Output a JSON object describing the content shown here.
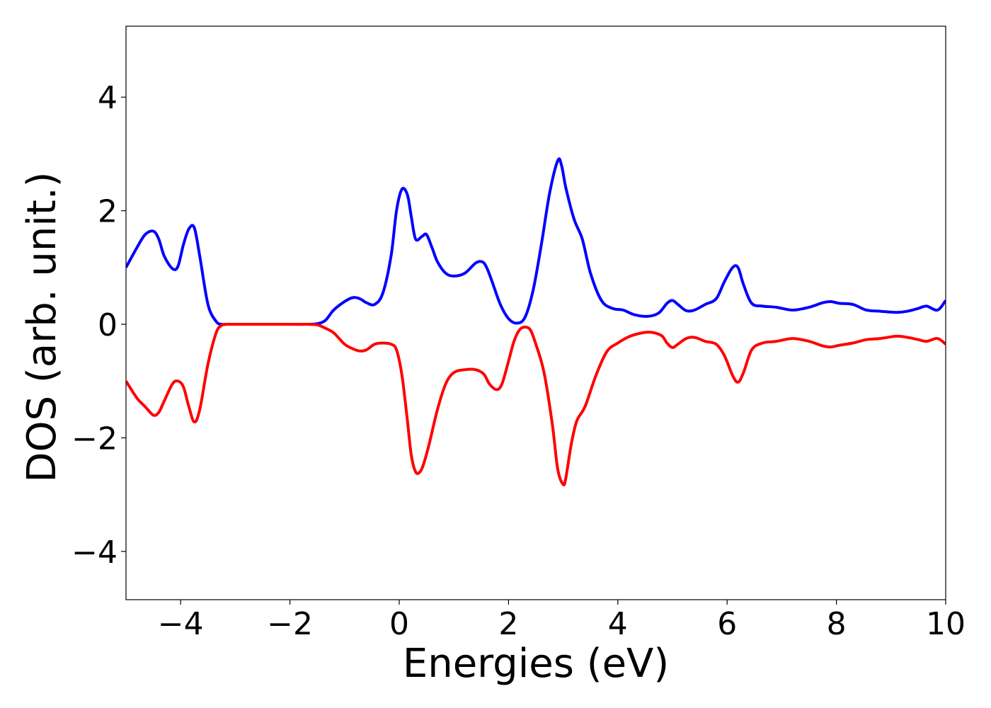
{
  "chart_data": {
    "type": "line",
    "title": "",
    "xlabel": "Energies (eV)",
    "ylabel": "DOS (arb. unit.)",
    "xlim": [
      -5,
      10
    ],
    "ylim": [
      -4.85,
      5.25
    ],
    "xticks": [
      -4,
      -2,
      0,
      2,
      4,
      6,
      8,
      10
    ],
    "xtick_labels": [
      "−4",
      "−2",
      "0",
      "2",
      "4",
      "6",
      "8",
      "10"
    ],
    "yticks": [
      -4,
      -2,
      0,
      2,
      4
    ],
    "ytick_labels": [
      "−4",
      "−2",
      "0",
      "2",
      "4"
    ],
    "grid": false,
    "legend": "none",
    "series": [
      {
        "color": "#0000ff",
        "x": [
          -5.0,
          -4.8,
          -4.65,
          -4.5,
          -4.4,
          -4.3,
          -4.15,
          -4.05,
          -3.95,
          -3.85,
          -3.75,
          -3.65,
          -3.5,
          -3.35,
          -3.25,
          -3.15,
          -3.0,
          -2.5,
          -2.0,
          -1.7,
          -1.5,
          -1.35,
          -1.2,
          -1.0,
          -0.85,
          -0.72,
          -0.6,
          -0.45,
          -0.3,
          -0.15,
          -0.05,
          0.05,
          0.15,
          0.22,
          0.3,
          0.42,
          0.5,
          0.6,
          0.7,
          0.85,
          1.0,
          1.2,
          1.4,
          1.52,
          1.6,
          1.7,
          1.85,
          2.0,
          2.15,
          2.3,
          2.45,
          2.6,
          2.75,
          2.9,
          2.97,
          3.05,
          3.2,
          3.35,
          3.5,
          3.7,
          3.9,
          4.1,
          4.3,
          4.55,
          4.75,
          4.9,
          5.0,
          5.1,
          5.25,
          5.4,
          5.6,
          5.8,
          5.95,
          6.1,
          6.2,
          6.3,
          6.45,
          6.65,
          6.9,
          7.2,
          7.5,
          7.75,
          7.9,
          8.05,
          8.3,
          8.55,
          8.8,
          9.1,
          9.3,
          9.5,
          9.65,
          9.85,
          10.0
        ],
        "y": [
          1.0,
          1.35,
          1.58,
          1.64,
          1.5,
          1.2,
          0.98,
          1.02,
          1.4,
          1.68,
          1.7,
          1.2,
          0.35,
          0.05,
          0.0,
          0.0,
          0.0,
          0.0,
          0.0,
          0.0,
          0.01,
          0.07,
          0.25,
          0.4,
          0.47,
          0.45,
          0.38,
          0.35,
          0.55,
          1.2,
          2.0,
          2.38,
          2.28,
          1.9,
          1.5,
          1.55,
          1.58,
          1.35,
          1.1,
          0.9,
          0.85,
          0.9,
          1.08,
          1.1,
          1.0,
          0.75,
          0.35,
          0.1,
          0.02,
          0.12,
          0.6,
          1.4,
          2.3,
          2.88,
          2.8,
          2.4,
          1.85,
          1.5,
          0.9,
          0.42,
          0.28,
          0.25,
          0.17,
          0.14,
          0.2,
          0.37,
          0.42,
          0.35,
          0.24,
          0.25,
          0.35,
          0.45,
          0.75,
          1.0,
          1.0,
          0.7,
          0.37,
          0.32,
          0.3,
          0.25,
          0.3,
          0.38,
          0.4,
          0.37,
          0.35,
          0.25,
          0.23,
          0.21,
          0.23,
          0.28,
          0.32,
          0.25,
          0.42
        ]
      },
      {
        "color": "#ff0000",
        "x": [
          -5.0,
          -4.8,
          -4.65,
          -4.5,
          -4.4,
          -4.3,
          -4.15,
          -4.05,
          -3.95,
          -3.85,
          -3.75,
          -3.65,
          -3.5,
          -3.35,
          -3.25,
          -3.15,
          -3.0,
          -2.5,
          -2.0,
          -1.7,
          -1.5,
          -1.35,
          -1.2,
          -1.0,
          -0.85,
          -0.72,
          -0.6,
          -0.45,
          -0.3,
          -0.15,
          -0.05,
          0.05,
          0.15,
          0.22,
          0.3,
          0.38,
          0.45,
          0.55,
          0.7,
          0.85,
          1.0,
          1.2,
          1.4,
          1.55,
          1.65,
          1.78,
          1.88,
          2.0,
          2.1,
          2.2,
          2.3,
          2.4,
          2.5,
          2.65,
          2.8,
          2.9,
          3.0,
          3.05,
          3.15,
          3.25,
          3.4,
          3.6,
          3.8,
          4.0,
          4.2,
          4.4,
          4.6,
          4.8,
          4.9,
          5.0,
          5.1,
          5.25,
          5.4,
          5.6,
          5.8,
          5.95,
          6.1,
          6.2,
          6.3,
          6.45,
          6.65,
          6.9,
          7.2,
          7.5,
          7.75,
          7.9,
          8.05,
          8.3,
          8.55,
          8.8,
          9.1,
          9.3,
          9.5,
          9.65,
          9.85,
          10.0
        ],
        "y": [
          -1.0,
          -1.3,
          -1.45,
          -1.6,
          -1.55,
          -1.35,
          -1.05,
          -1.0,
          -1.1,
          -1.45,
          -1.72,
          -1.5,
          -0.7,
          -0.15,
          -0.02,
          0.0,
          0.0,
          0.0,
          0.0,
          0.0,
          -0.01,
          -0.07,
          -0.15,
          -0.35,
          -0.43,
          -0.47,
          -0.45,
          -0.35,
          -0.33,
          -0.35,
          -0.45,
          -0.9,
          -1.7,
          -2.3,
          -2.6,
          -2.6,
          -2.45,
          -2.1,
          -1.5,
          -1.05,
          -0.85,
          -0.8,
          -0.8,
          -0.88,
          -1.05,
          -1.15,
          -1.05,
          -0.65,
          -0.3,
          -0.1,
          -0.05,
          -0.1,
          -0.35,
          -0.85,
          -1.75,
          -2.55,
          -2.82,
          -2.7,
          -2.1,
          -1.7,
          -1.45,
          -0.9,
          -0.48,
          -0.33,
          -0.22,
          -0.16,
          -0.14,
          -0.2,
          -0.33,
          -0.41,
          -0.35,
          -0.25,
          -0.23,
          -0.3,
          -0.35,
          -0.55,
          -0.9,
          -1.02,
          -0.85,
          -0.45,
          -0.33,
          -0.3,
          -0.25,
          -0.3,
          -0.38,
          -0.4,
          -0.37,
          -0.33,
          -0.27,
          -0.25,
          -0.21,
          -0.23,
          -0.27,
          -0.3,
          -0.25,
          -0.35
        ]
      }
    ]
  }
}
